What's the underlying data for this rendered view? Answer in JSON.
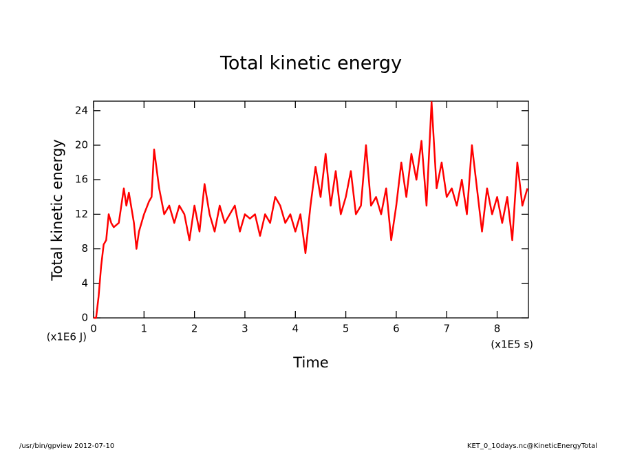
{
  "chart_data": {
    "type": "line",
    "title": "Total kinetic energy",
    "ylabel": "Total kinetic energy",
    "xlabel": "Time",
    "yunit": "(x1E6 J)",
    "xunit": "(x1E5 s)",
    "footer_left": "/usr/bin/gpview  2012-07-10",
    "footer_right": "KET_0_10days.nc@KineticEnergyTotal",
    "xlim": [
      0,
      8.62
    ],
    "ylim": [
      0,
      25.1
    ],
    "xticks": [
      0,
      1,
      2,
      3,
      4,
      5,
      6,
      7,
      8
    ],
    "yticks": [
      0,
      4,
      8,
      12,
      16,
      20,
      24
    ],
    "x": [
      0,
      0.05,
      0.1,
      0.15,
      0.2,
      0.25,
      0.3,
      0.35,
      0.4,
      0.5,
      0.6,
      0.65,
      0.7,
      0.8,
      0.85,
      0.9,
      1.0,
      1.1,
      1.15,
      1.2,
      1.3,
      1.4,
      1.5,
      1.6,
      1.7,
      1.8,
      1.9,
      2.0,
      2.1,
      2.2,
      2.3,
      2.4,
      2.5,
      2.6,
      2.7,
      2.8,
      2.9,
      3.0,
      3.1,
      3.2,
      3.3,
      3.4,
      3.5,
      3.6,
      3.7,
      3.8,
      3.9,
      4.0,
      4.1,
      4.2,
      4.3,
      4.4,
      4.5,
      4.6,
      4.7,
      4.8,
      4.9,
      5.0,
      5.1,
      5.2,
      5.3,
      5.4,
      5.5,
      5.6,
      5.7,
      5.8,
      5.9,
      6.0,
      6.1,
      6.2,
      6.3,
      6.4,
      6.5,
      6.6,
      6.7,
      6.8,
      6.9,
      7.0,
      7.1,
      7.2,
      7.3,
      7.4,
      7.5,
      7.6,
      7.7,
      7.8,
      7.9,
      8.0,
      8.1,
      8.2,
      8.3,
      8.4,
      8.5,
      8.6
    ],
    "series": [
      {
        "name": "Total kinetic energy",
        "color": "#ff0000",
        "values": [
          0,
          0,
          2.5,
          6,
          8.5,
          9,
          12,
          11,
          10.5,
          11,
          15,
          13,
          14.5,
          11,
          8,
          10,
          12,
          13.5,
          14,
          19.5,
          15,
          12,
          13,
          11,
          13,
          12,
          9,
          13,
          10,
          15.5,
          12,
          10,
          13,
          11,
          12,
          13,
          10,
          12,
          11.5,
          12,
          9.5,
          12,
          11,
          14,
          13,
          11,
          12,
          10,
          12,
          7.5,
          13,
          17.5,
          14,
          19,
          13,
          17,
          12,
          14,
          17,
          12,
          13,
          20,
          13,
          14,
          12,
          15,
          9,
          13,
          18,
          14,
          19,
          16,
          20.5,
          13,
          25,
          15,
          18,
          14,
          15,
          13,
          16,
          12,
          20,
          15,
          10,
          15,
          12,
          14,
          11,
          14,
          9,
          18,
          13,
          15
        ]
      }
    ]
  }
}
